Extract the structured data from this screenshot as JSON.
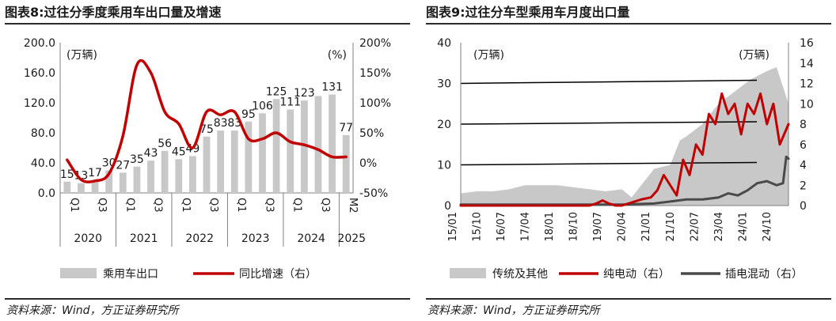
{
  "left": {
    "title": "图表8:过往分季度乘用车出口量及增速",
    "source": "资料来源：Wind，方正证券研究所",
    "chart_data": {
      "type": "bar+line",
      "unit_left": "(万辆)",
      "unit_right": "(%)",
      "y_left": {
        "range": [
          0,
          200
        ],
        "ticks": [
          "0.0",
          "40.0",
          "80.0",
          "120.0",
          "160.0",
          "200.0"
        ]
      },
      "y_right": {
        "range": [
          -50,
          200
        ],
        "ticks": [
          "-50%",
          "0%",
          "50%",
          "100%",
          "150%",
          "200%"
        ]
      },
      "quarter_labels": [
        "Q1",
        "Q3",
        "Q1",
        "Q3",
        "Q1",
        "Q3",
        "Q1",
        "Q3",
        "Q1",
        "Q3",
        "M2"
      ],
      "years": [
        "2020",
        "2021",
        "2022",
        "2023",
        "2024",
        "2025"
      ],
      "series": [
        {
          "name": "乘用车出口",
          "kind": "bar",
          "color": "#c8c8c8",
          "values": [
            15,
            13,
            17,
            30,
            27,
            35,
            43,
            56,
            45,
            49,
            75,
            83,
            83,
            95,
            106,
            125,
            111,
            123,
            129,
            131,
            77
          ],
          "labels": [
            "15",
            "13",
            "17",
            "30",
            "27",
            "35",
            "43",
            "56",
            "45",
            "49",
            "75",
            "83",
            "83",
            "95",
            "106",
            "125",
            "111",
            "123",
            "",
            "131",
            "77"
          ]
        },
        {
          "name": "同比增速（右）",
          "kind": "line",
          "color": "#c00000",
          "values": [
            5,
            -28,
            -30,
            -18,
            45,
            163,
            150,
            85,
            65,
            25,
            85,
            80,
            85,
            40,
            40,
            50,
            35,
            30,
            22,
            10,
            10
          ]
        }
      ],
      "legend": [
        "乘用车出口",
        "同比增速（右）"
      ]
    }
  },
  "right": {
    "title": "图表9:过往分车型乘用车月度出口量",
    "source": "资料来源：Wind，方正证券研究所",
    "chart_data": {
      "type": "area+line",
      "unit_left": "(万辆)",
      "unit_right": "(万辆)",
      "y_left": {
        "range": [
          0,
          40
        ],
        "ticks": [
          "0",
          "10",
          "20",
          "30",
          "40"
        ]
      },
      "y_right": {
        "range": [
          0,
          16
        ],
        "ticks": [
          "0",
          "2",
          "4",
          "6",
          "8",
          "10",
          "12",
          "14",
          "16"
        ]
      },
      "x_labels": [
        "15/01",
        "15/10",
        "16/07",
        "17/04",
        "18/01",
        "18/10",
        "19/07",
        "20/04",
        "21/01",
        "21/10",
        "22/07",
        "23/04",
        "24/01",
        "24/10"
      ],
      "x_start": 2015.0,
      "x_end": 2025.17,
      "series": [
        {
          "name": "传统及其他",
          "kind": "area",
          "color": "#c8c8c8",
          "x": [
            2015.0,
            2015.5,
            2016.0,
            2016.5,
            2017.0,
            2017.5,
            2018.0,
            2018.5,
            2019.0,
            2019.5,
            2020.0,
            2020.3,
            2020.6,
            2021.0,
            2021.5,
            2021.8,
            2022.0,
            2022.5,
            2023.0,
            2023.5,
            2024.0,
            2024.5,
            2024.8,
            2025.17
          ],
          "values": [
            3,
            3.5,
            3.5,
            4,
            5,
            5,
            5,
            4.5,
            4,
            3.5,
            4,
            2,
            5,
            9,
            10,
            16,
            17,
            20,
            25,
            28,
            31,
            33,
            34,
            25
          ]
        },
        {
          "name": "纯电动（右）",
          "kind": "line",
          "color": "#c00000",
          "x": [
            2015.0,
            2019.0,
            2019.2,
            2019.4,
            2019.6,
            2019.8,
            2020.0,
            2020.3,
            2020.6,
            2020.9,
            2021.1,
            2021.3,
            2021.5,
            2021.7,
            2021.9,
            2022.1,
            2022.3,
            2022.5,
            2022.7,
            2022.9,
            2023.1,
            2023.3,
            2023.5,
            2023.7,
            2023.9,
            2024.1,
            2024.3,
            2024.5,
            2024.7,
            2024.9,
            2025.17
          ],
          "values": [
            0,
            0,
            0.2,
            0.5,
            0.2,
            0,
            0,
            0.3,
            0.6,
            0.8,
            1.5,
            3,
            2,
            1,
            4.5,
            3,
            6,
            5,
            9,
            8,
            11,
            9,
            10,
            7,
            10,
            9,
            11,
            8,
            10,
            6,
            8
          ]
        },
        {
          "name": "插电混动（右）",
          "kind": "line",
          "color": "#4a4a4a",
          "x": [
            2015.0,
            2020.0,
            2021.0,
            2021.5,
            2022.0,
            2022.5,
            2023.0,
            2023.3,
            2023.6,
            2023.9,
            2024.2,
            2024.5,
            2024.8,
            2025.0,
            2025.1,
            2025.17
          ],
          "values": [
            0.1,
            0.1,
            0.2,
            0.4,
            0.6,
            0.6,
            0.8,
            1.2,
            1.0,
            1.5,
            2.2,
            2.4,
            2.0,
            2.2,
            4.8,
            4.6
          ]
        }
      ],
      "hlines_left": [
        10,
        20,
        30
      ],
      "legend": [
        "传统及其他",
        "纯电动（右）",
        "插电混动（右）"
      ]
    }
  }
}
